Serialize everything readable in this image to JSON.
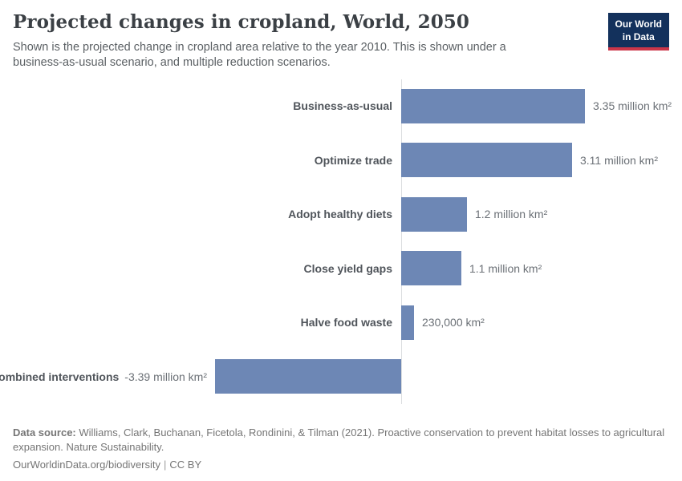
{
  "header": {
    "logo": {
      "line1": "Our World",
      "line2": "in Data"
    }
  },
  "chart_data": {
    "type": "bar",
    "orientation": "horizontal",
    "title": "Projected changes in cropland, World, 2050",
    "subtitle": "Shown is the projected change in cropland area relative to the year 2010. This is shown under a business-as-usual scenario, and multiple reduction scenarios.",
    "categories": [
      "Business-as-usual",
      "Optimize trade",
      "Adopt healthy diets",
      "Close yield gaps",
      "Halve food waste",
      "Combined interventions"
    ],
    "values": [
      3.35,
      3.11,
      1.2,
      1.1,
      0.23,
      -3.39
    ],
    "value_labels": [
      "3.35 million km²",
      "3.11 million km²",
      "1.2 million km²",
      "1.1 million km²",
      "230,000 km²",
      "-3.39 million km²"
    ],
    "unit": "million km²",
    "xlim": [
      -3.39,
      3.35
    ],
    "grid": false,
    "legend": "none",
    "colors": {
      "bar": "#6d87b5",
      "axis_line": "#dcdee0"
    }
  },
  "footer": {
    "datasource_label": "Data source:",
    "datasource_text": " Williams, Clark, Buchanan, Ficetola, Rondinini, & Tilman (2021). Proactive conservation to prevent habitat losses to agricultural expansion. Nature Sustainability.",
    "url": "OurWorldinData.org/biodiversity",
    "separator": "|",
    "license_label": "CC BY"
  }
}
